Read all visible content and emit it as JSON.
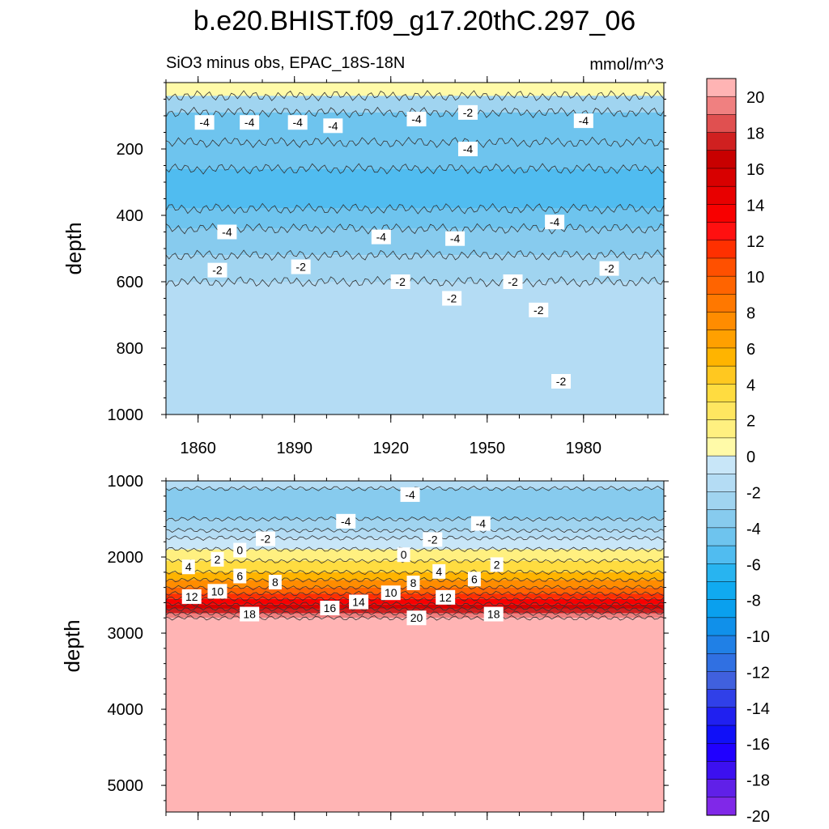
{
  "title": "b.e20.BHIST.f09_g17.20thC.297_06",
  "subtitle": "SiO3 minus obs, EPAC_18S-18N",
  "units": "mmol/m^3",
  "chart_data": [
    {
      "type": "contour",
      "panel": "upper",
      "ylabel": "depth",
      "ylim": [
        1000,
        0
      ],
      "xlim": [
        1850,
        2005
      ],
      "yticks": [
        "200",
        "400",
        "600",
        "800",
        "1000"
      ],
      "xticks": [
        "1860",
        "1890",
        "1920",
        "1950",
        "1980"
      ],
      "bands": [
        {
          "depth_top": 0,
          "depth_bottom": 40,
          "value": 0
        },
        {
          "depth_top": 40,
          "depth_bottom": 90,
          "value": -3
        },
        {
          "depth_top": 90,
          "depth_bottom": 180,
          "value": -4.5
        },
        {
          "depth_top": 180,
          "depth_bottom": 260,
          "value": -5
        },
        {
          "depth_top": 260,
          "depth_bottom": 380,
          "value": -6
        },
        {
          "depth_top": 380,
          "depth_bottom": 440,
          "value": -5
        },
        {
          "depth_top": 440,
          "depth_bottom": 520,
          "value": -4
        },
        {
          "depth_top": 520,
          "depth_bottom": 600,
          "value": -3
        },
        {
          "depth_top": 600,
          "depth_bottom": 1000,
          "value": -2
        }
      ],
      "contour_labels": [
        {
          "x": 1862,
          "depth": 120,
          "text": "-4"
        },
        {
          "x": 1876,
          "depth": 120,
          "text": "-4"
        },
        {
          "x": 1891,
          "depth": 120,
          "text": "-4"
        },
        {
          "x": 1902,
          "depth": 130,
          "text": "-4"
        },
        {
          "x": 1928,
          "depth": 110,
          "text": "-4"
        },
        {
          "x": 1944,
          "depth": 90,
          "text": "-2"
        },
        {
          "x": 1944,
          "depth": 200,
          "text": "-4"
        },
        {
          "x": 1980,
          "depth": 115,
          "text": "-4"
        },
        {
          "x": 1869,
          "depth": 450,
          "text": "-4"
        },
        {
          "x": 1917,
          "depth": 465,
          "text": "-4"
        },
        {
          "x": 1940,
          "depth": 470,
          "text": "-4"
        },
        {
          "x": 1971,
          "depth": 420,
          "text": "-4"
        },
        {
          "x": 1866,
          "depth": 565,
          "text": "-2"
        },
        {
          "x": 1892,
          "depth": 555,
          "text": "-2"
        },
        {
          "x": 1923,
          "depth": 600,
          "text": "-2"
        },
        {
          "x": 1939,
          "depth": 650,
          "text": "-2"
        },
        {
          "x": 1958,
          "depth": 600,
          "text": "-2"
        },
        {
          "x": 1966,
          "depth": 685,
          "text": "-2"
        },
        {
          "x": 1988,
          "depth": 560,
          "text": "-2"
        },
        {
          "x": 1973,
          "depth": 900,
          "text": "-2"
        }
      ]
    },
    {
      "type": "contour",
      "panel": "lower",
      "ylabel": "depth",
      "ylim": [
        5350,
        1000
      ],
      "xlim": [
        1850,
        2005
      ],
      "yticks": [
        "1000",
        "2000",
        "3000",
        "4000",
        "5000"
      ],
      "bands": [
        {
          "depth_top": 1000,
          "depth_bottom": 1100,
          "value": -2
        },
        {
          "depth_top": 1100,
          "depth_bottom": 1500,
          "value": -4
        },
        {
          "depth_top": 1500,
          "depth_bottom": 1650,
          "value": -3
        },
        {
          "depth_top": 1650,
          "depth_bottom": 1750,
          "value": -2
        },
        {
          "depth_top": 1750,
          "depth_bottom": 1900,
          "value": -1
        },
        {
          "depth_top": 1900,
          "depth_bottom": 2050,
          "value": 1
        },
        {
          "depth_top": 2050,
          "depth_bottom": 2200,
          "value": 3
        },
        {
          "depth_top": 2200,
          "depth_bottom": 2300,
          "value": 5
        },
        {
          "depth_top": 2300,
          "depth_bottom": 2400,
          "value": 7
        },
        {
          "depth_top": 2400,
          "depth_bottom": 2480,
          "value": 9
        },
        {
          "depth_top": 2480,
          "depth_bottom": 2550,
          "value": 11
        },
        {
          "depth_top": 2550,
          "depth_bottom": 2620,
          "value": 13
        },
        {
          "depth_top": 2620,
          "depth_bottom": 2680,
          "value": 15
        },
        {
          "depth_top": 2680,
          "depth_bottom": 2740,
          "value": 17
        },
        {
          "depth_top": 2740,
          "depth_bottom": 2800,
          "value": 19
        },
        {
          "depth_top": 2800,
          "depth_bottom": 5350,
          "value": 21
        }
      ],
      "contour_labels": [
        {
          "x": 1926,
          "depth": 1180,
          "text": "-4"
        },
        {
          "x": 1906,
          "depth": 1530,
          "text": "-4"
        },
        {
          "x": 1948,
          "depth": 1560,
          "text": "-4"
        },
        {
          "x": 1881,
          "depth": 1760,
          "text": "-2"
        },
        {
          "x": 1933,
          "depth": 1770,
          "text": "-2"
        },
        {
          "x": 1873,
          "depth": 1910,
          "text": "0"
        },
        {
          "x": 1924,
          "depth": 1970,
          "text": "0"
        },
        {
          "x": 1866,
          "depth": 2030,
          "text": "2"
        },
        {
          "x": 1953,
          "depth": 2100,
          "text": "2"
        },
        {
          "x": 1857,
          "depth": 2130,
          "text": "4"
        },
        {
          "x": 1935,
          "depth": 2190,
          "text": "4"
        },
        {
          "x": 1873,
          "depth": 2250,
          "text": "6"
        },
        {
          "x": 1946,
          "depth": 2290,
          "text": "6"
        },
        {
          "x": 1884,
          "depth": 2330,
          "text": "8"
        },
        {
          "x": 1927,
          "depth": 2340,
          "text": "8"
        },
        {
          "x": 1858,
          "depth": 2520,
          "text": "12"
        },
        {
          "x": 1866,
          "depth": 2450,
          "text": "10"
        },
        {
          "x": 1920,
          "depth": 2470,
          "text": "10"
        },
        {
          "x": 1937,
          "depth": 2530,
          "text": "12"
        },
        {
          "x": 1910,
          "depth": 2590,
          "text": "14"
        },
        {
          "x": 1901,
          "depth": 2670,
          "text": "16"
        },
        {
          "x": 1876,
          "depth": 2750,
          "text": "18"
        },
        {
          "x": 1952,
          "depth": 2750,
          "text": "18"
        },
        {
          "x": 1928,
          "depth": 2800,
          "text": "20"
        }
      ]
    }
  ],
  "colorbar": {
    "labels": [
      "20",
      "18",
      "16",
      "14",
      "12",
      "10",
      "8",
      "6",
      "4",
      "2",
      "0",
      "-2",
      "-4",
      "-6",
      "-8",
      "-10",
      "-12",
      "-14",
      "-16",
      "-18",
      "-20"
    ],
    "colors_top_to_bottom": [
      "#ffb4b4",
      "#f08080",
      "#e05050",
      "#d02020",
      "#c80000",
      "#d80000",
      "#e80000",
      "#f80000",
      "#ff1010",
      "#ff3000",
      "#ff5000",
      "#ff6400",
      "#ff7800",
      "#ff8c00",
      "#ffa000",
      "#ffb400",
      "#ffc820",
      "#ffdc40",
      "#ffe660",
      "#fff080",
      "#fffaa8",
      "#c8e6f8",
      "#b4dcf4",
      "#a0d4f0",
      "#87cbee",
      "#6ec4ee",
      "#50bcf0",
      "#28b4f0",
      "#10aaf0",
      "#0aa0ee",
      "#1090ea",
      "#2080e6",
      "#3070e2",
      "#4060de",
      "#3040e8",
      "#2020f0",
      "#1010f8",
      "#2000ff",
      "#3c10f0",
      "#6020e8",
      "#8028e8"
    ]
  }
}
